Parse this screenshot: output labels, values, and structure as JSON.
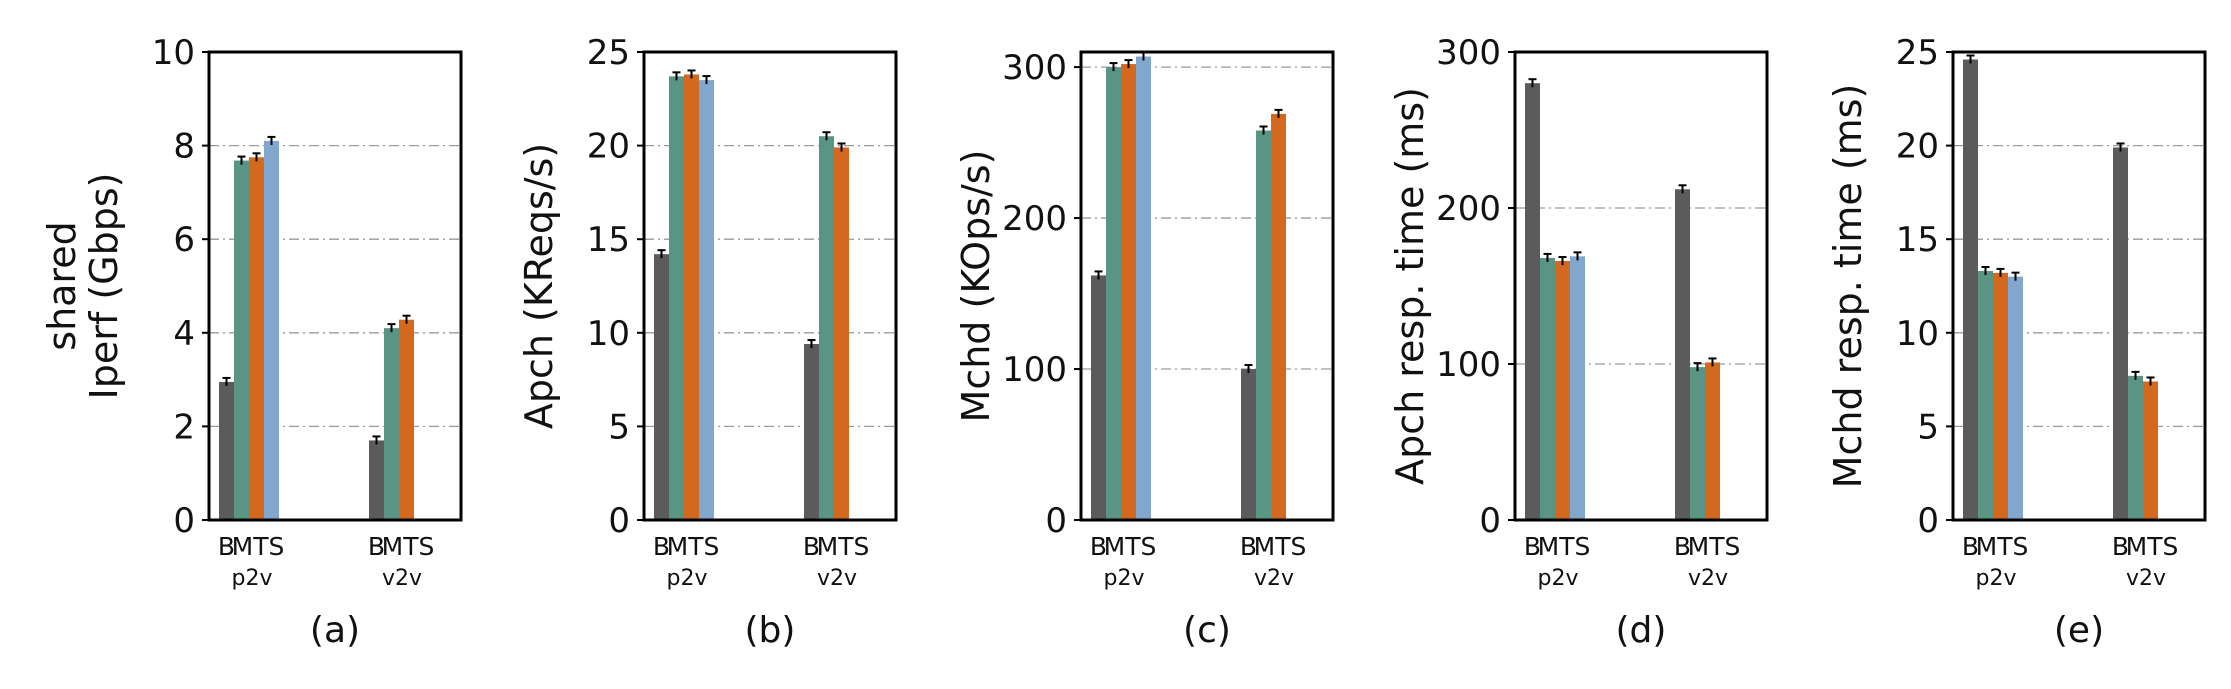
{
  "chart_data": [
    {
      "type": "bar",
      "subplot_label": "(a)",
      "ylabel_lines": [
        "shared",
        "Iperf (Gbps)"
      ],
      "ylim": [
        0,
        10
      ],
      "yticks": [
        "0",
        "2",
        "4",
        "6",
        "8",
        "10"
      ],
      "grid": "horizontal dash-dot",
      "groups": [
        {
          "name": "p2v",
          "xlabels": [
            "B",
            "MTS"
          ],
          "values": [
            2.95,
            7.68,
            7.75,
            8.1
          ]
        },
        {
          "name": "v2v",
          "xlabels": [
            "B",
            "MTS"
          ],
          "values": [
            1.7,
            4.1,
            4.28
          ]
        }
      ]
    },
    {
      "type": "bar",
      "subplot_label": "(b)",
      "ylabel_lines": [
        "Apch (KReqs/s)"
      ],
      "ylim": [
        0,
        25
      ],
      "yticks": [
        "0",
        "5",
        "10",
        "15",
        "20",
        "25"
      ],
      "grid": "horizontal dash-dot",
      "groups": [
        {
          "name": "p2v",
          "xlabels": [
            "B",
            "MTS"
          ],
          "values": [
            14.2,
            23.7,
            23.8,
            23.5
          ]
        },
        {
          "name": "v2v",
          "xlabels": [
            "B",
            "MTS"
          ],
          "values": [
            9.4,
            20.5,
            19.9
          ]
        }
      ]
    },
    {
      "type": "bar",
      "subplot_label": "(c)",
      "ylabel_lines": [
        "Mchd (KOps/s)"
      ],
      "ylim": [
        0,
        310
      ],
      "yticks": [
        "0",
        "100",
        "200",
        "300"
      ],
      "grid": "horizontal dash-dot",
      "groups": [
        {
          "name": "p2v",
          "xlabels": [
            "B",
            "MTS"
          ],
          "values": [
            162,
            300,
            302,
            307
          ]
        },
        {
          "name": "v2v",
          "xlabels": [
            "B",
            "MTS"
          ],
          "values": [
            100,
            258,
            269
          ]
        }
      ]
    },
    {
      "type": "bar",
      "subplot_label": "(d)",
      "ylabel_lines": [
        "Apch resp. time (ms)"
      ],
      "ylim": [
        0,
        300
      ],
      "yticks": [
        "0",
        "100",
        "200",
        "300"
      ],
      "grid": "horizontal dash-dot",
      "groups": [
        {
          "name": "p2v",
          "xlabels": [
            "B",
            "MTS"
          ],
          "values": [
            280,
            168,
            166,
            169
          ]
        },
        {
          "name": "v2v",
          "xlabels": [
            "B",
            "MTS"
          ],
          "values": [
            212,
            98,
            101
          ]
        }
      ]
    },
    {
      "type": "bar",
      "subplot_label": "(e)",
      "ylabel_lines": [
        "Mchd resp. time (ms)"
      ],
      "ylim": [
        0,
        25
      ],
      "yticks": [
        "0",
        "5",
        "10",
        "15",
        "20",
        "25"
      ],
      "grid": "horizontal dash-dot",
      "groups": [
        {
          "name": "p2v",
          "xlabels": [
            "B",
            "MTS"
          ],
          "values": [
            24.6,
            13.3,
            13.2,
            13.0
          ]
        },
        {
          "name": "v2v",
          "xlabels": [
            "B",
            "MTS"
          ],
          "values": [
            19.9,
            7.7,
            7.4
          ]
        }
      ]
    }
  ],
  "colors": {
    "bars": [
      "#5b5b5b",
      "#5a9484",
      "#d2691e",
      "#82a7cf"
    ],
    "frame": "#000000",
    "grid": "#9a9a9a"
  }
}
